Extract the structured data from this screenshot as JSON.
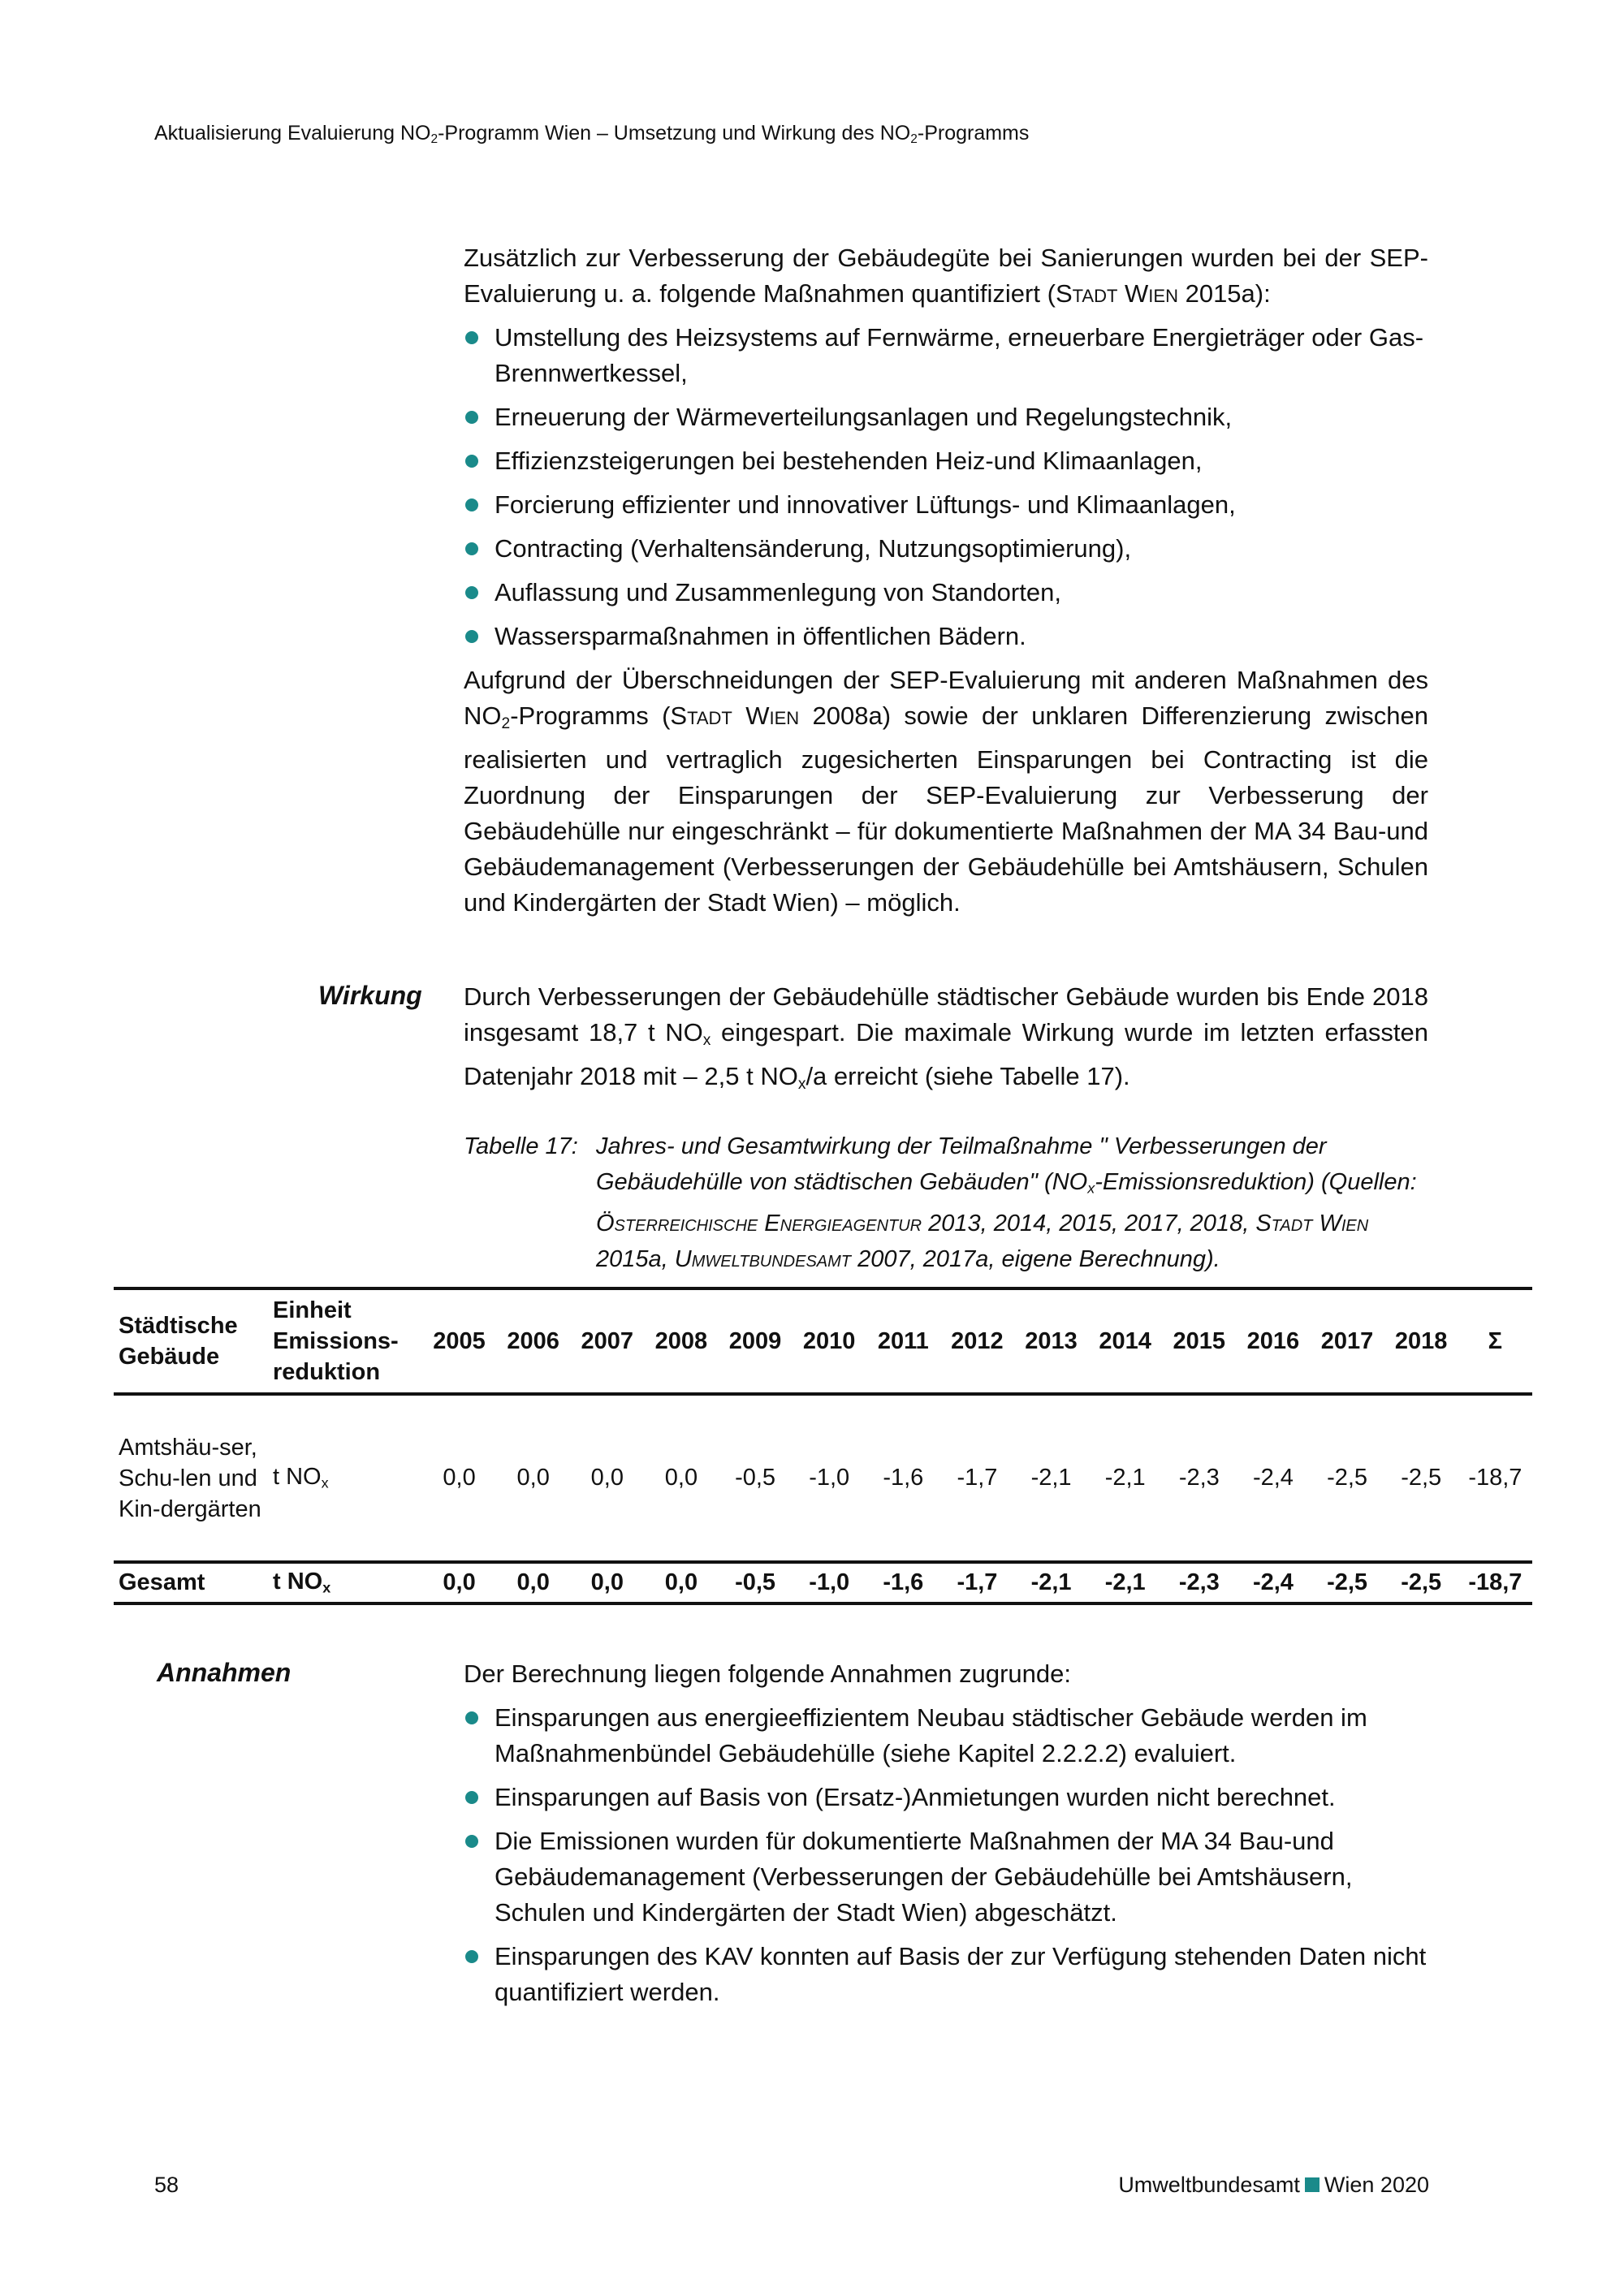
{
  "header": [
    {
      "t": "Aktualisierung Evaluierung NO"
    },
    {
      "t": "2",
      "s": "sub"
    },
    {
      "t": "-Programm Wien – Umsetzung und Wirkung des NO"
    },
    {
      "t": "2",
      "s": "sub"
    },
    {
      "t": "-Programms"
    }
  ],
  "intro": {
    "p1": [
      {
        "t": "Zusätzlich zur Verbesserung der Gebäudegüte bei Sanierungen wurden bei der SEP-Evaluierung u. a. folgende Maßnahmen quantifiziert ("
      },
      {
        "t": "Stadt Wien",
        "s": "sc"
      },
      {
        "t": " 2015a):"
      }
    ],
    "bullets": [
      [
        {
          "t": "Umstellung des Heizsystems auf Fernwärme, erneuerbare Energieträger oder Gas-Brennwertkessel,"
        }
      ],
      [
        {
          "t": "Erneuerung der Wärmeverteilungsanlagen und Regelungstechnik,"
        }
      ],
      [
        {
          "t": "Effizienzsteigerungen bei bestehenden Heiz-und Klimaanlagen,"
        }
      ],
      [
        {
          "t": "Forcierung effizienter und innovativer Lüftungs- und Klimaanlagen,"
        }
      ],
      [
        {
          "t": "Contracting (Verhaltensänderung, Nutzungsoptimierung),"
        }
      ],
      [
        {
          "t": "Auflassung und Zusammenlegung von Standorten,"
        }
      ],
      [
        {
          "t": "Wassersparmaßnahmen in öffentlichen Bädern."
        }
      ]
    ],
    "p2": [
      {
        "t": "Aufgrund der Überschneidungen der SEP-Evaluierung mit anderen Maßnahmen des NO"
      },
      {
        "t": "2",
        "s": "sub"
      },
      {
        "t": "-Programms ("
      },
      {
        "t": "Stadt Wien",
        "s": "sc"
      },
      {
        "t": " 2008a) sowie der unklaren Differenzierung zwischen realisierten und vertraglich zugesicherten Einsparungen bei Contrac­ting ist die Zuordnung der Einsparungen der SEP-Evaluierung zur Verbesserung der Gebäudehülle nur eingeschränkt – für dokumentierte Maßnahmen der MA 34 Bau-und Gebäudemanagement (Verbesserungen der Gebäudehülle bei Amts­häusern, Schulen und Kindergärten der Stadt Wien) – möglich."
      }
    ]
  },
  "wirkung": {
    "label": "Wirkung",
    "p": [
      {
        "t": "Durch Verbesserungen der Gebäudehülle städtischer Gebäude wurden bis Ende 2018 insgesamt 18,7 t NO"
      },
      {
        "t": "x",
        "s": "sub"
      },
      {
        "t": " eingespart. Die maximale Wirkung wurde im letzten erfassten Datenjahr 2018 mit – 2,5 t NO"
      },
      {
        "t": "x",
        "s": "sub"
      },
      {
        "t": "/a erreicht (siehe Tabelle 17)."
      }
    ]
  },
  "caption": {
    "label": "Tabelle 17:",
    "text": [
      {
        "t": "Jahres- und Gesamtwirkung der Teilmaßnahme \" Verbesserungen der Gebäudehülle von städtischen Gebäuden\" (NO"
      },
      {
        "t": "x",
        "s": "sub"
      },
      {
        "t": "-Emissionsreduktion) (Quellen: "
      },
      {
        "t": "Österreichische Energieagentur",
        "s": "sc"
      },
      {
        "t": " 2013, 2014, 2015, 2017, 2018, "
      },
      {
        "t": "Stadt Wien",
        "s": "sc"
      },
      {
        "t": " 2015a, "
      },
      {
        "t": "Umweltbundesamt",
        "s": "sc"
      },
      {
        "t": " 2007, 2017a, eigene Berechnung)."
      }
    ]
  },
  "table": {
    "col1_header": "Städtische Gebäude",
    "col2_header_1": "Einheit",
    "col2_header_2": "Emissions-reduktion",
    "years": [
      "2005",
      "2006",
      "2007",
      "2008",
      "2009",
      "2010",
      "2011",
      "2012",
      "2013",
      "2014",
      "2015",
      "2016",
      "2017",
      "2018",
      "Σ"
    ],
    "rows": [
      {
        "label": "Amtshäu-ser, Schu-len und Kin-dergärten",
        "unit": "t NO",
        "unit_sub": "x",
        "values": [
          "0,0",
          "0,0",
          "0,0",
          "0,0",
          "-0,5",
          "-1,0",
          "-1,6",
          "-1,7",
          "-2,1",
          "-2,1",
          "-2,3",
          "-2,4",
          "-2,5",
          "-2,5",
          "-18,7"
        ]
      }
    ],
    "total": {
      "label": "Gesamt",
      "unit": "t NO",
      "unit_sub": "x",
      "values": [
        "0,0",
        "0,0",
        "0,0",
        "0,0",
        "-0,5",
        "-1,0",
        "-1,6",
        "-1,7",
        "-2,1",
        "-2,1",
        "-2,3",
        "-2,4",
        "-2,5",
        "-2,5",
        "-18,7"
      ]
    }
  },
  "annahmen": {
    "label": "Annahmen",
    "p": [
      {
        "t": "Der Berechnung liegen folgende Annahmen zugrunde:"
      }
    ],
    "bullets": [
      [
        {
          "t": "Einsparungen aus energieeffizientem Neubau städtischer Gebäude werden im Maßnahmenbündel Gebäudehülle (siehe Kapitel 2.2.2.2) evaluiert."
        }
      ],
      [
        {
          "t": "Einsparungen auf Basis von (Ersatz-)Anmietungen wurden nicht berechnet."
        }
      ],
      [
        {
          "t": "Die Emissionen wurden für dokumentierte Maßnahmen der MA 34 Bau-und Gebäudemanagement (Verbesserungen der Gebäudehülle bei Amtshäusern, Schulen und Kindergärten der Stadt Wien) abgeschätzt."
        }
      ],
      [
        {
          "t": "Einsparungen des KAV konnten auf Basis der zur Verfügung stehenden Daten nicht quantifiziert werden."
        }
      ]
    ]
  },
  "footer": {
    "page": "58",
    "publisher": "Umweltbundesamt",
    "place_year": "Wien 2020"
  },
  "colors": {
    "accent": "#1a8a8a"
  }
}
